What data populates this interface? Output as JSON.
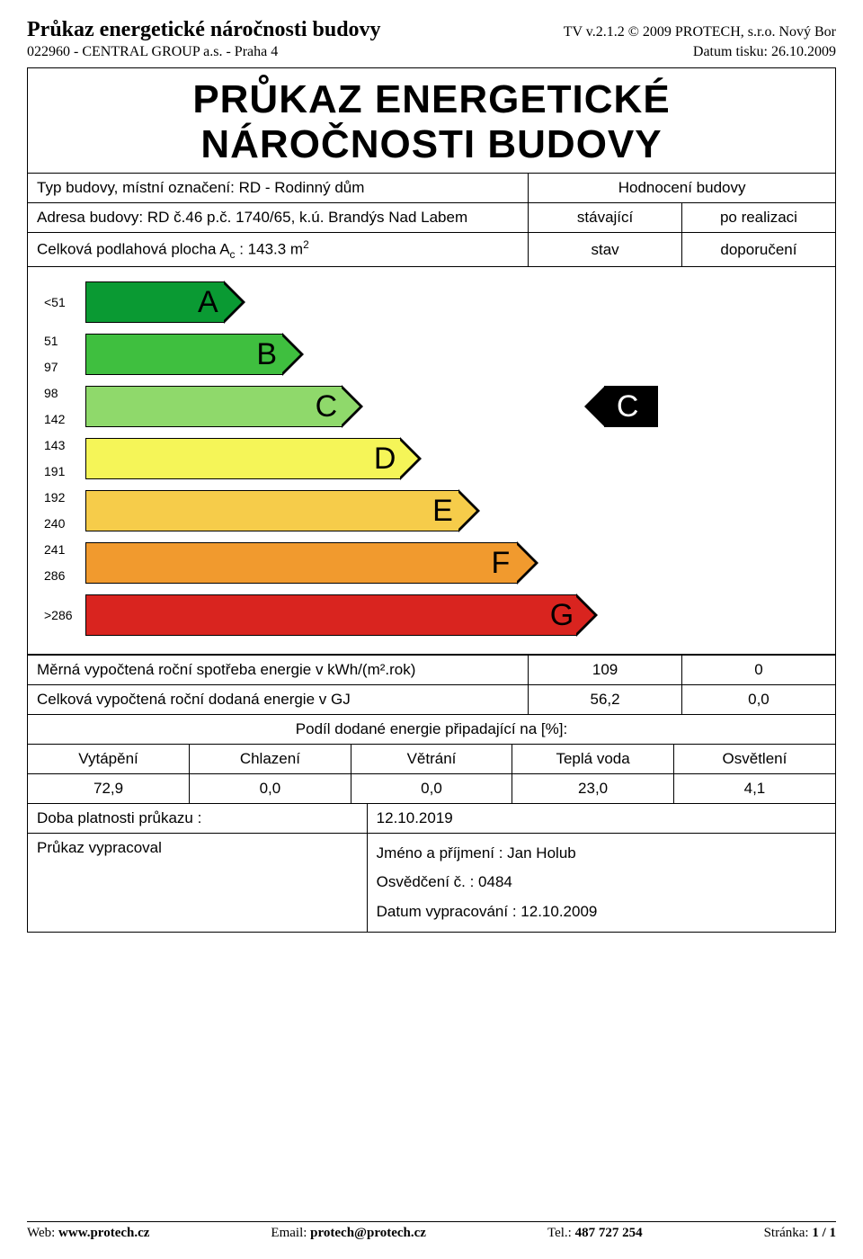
{
  "header": {
    "title": "Průkaz energetické náročnosti budovy",
    "software": "TV v.2.1.2 © 2009 PROTECH, s.r.o. Nový Bor",
    "project": "022960 - CENTRAL GROUP a.s. - Praha 4",
    "print_date_label": "Datum tisku: ",
    "print_date": "26.10.2009"
  },
  "main_title_line1": "PRŮKAZ ENERGETICKÉ",
  "main_title_line2": "NÁROČNOSTI BUDOVY",
  "info": {
    "type_label": "Typ budovy, místní označení: ",
    "type_value": "RD - Rodinný dům",
    "rating_header": "Hodnocení budovy",
    "address_label": "Adresa budovy: ",
    "address_value": "RD č.46 p.č. 1740/65, k.ú. Brandýs Nad Labem",
    "col2_row2": "stávající",
    "col3_row2": "po realizaci",
    "area_label_pre": "Celková podlahová plocha A",
    "area_label_sub": "c",
    "area_label_post": " : 143.3 m",
    "col2_row3": "stav",
    "col3_row3": "doporučení"
  },
  "chart": {
    "bars": [
      {
        "letter": "A",
        "range_lo": "<51",
        "range_hi": "",
        "width_pct": 22,
        "color": "#0a9a33"
      },
      {
        "letter": "B",
        "range_lo": "51",
        "range_hi": "97",
        "width_pct": 30,
        "color": "#3fbf3f"
      },
      {
        "letter": "C",
        "range_lo": "98",
        "range_hi": "142",
        "width_pct": 38,
        "color": "#8fd96b"
      },
      {
        "letter": "D",
        "range_lo": "143",
        "range_hi": "191",
        "width_pct": 46,
        "color": "#f5f558"
      },
      {
        "letter": "E",
        "range_lo": "192",
        "range_hi": "240",
        "width_pct": 54,
        "color": "#f6cc4a"
      },
      {
        "letter": "F",
        "range_lo": "241",
        "range_hi": "286",
        "width_pct": 62,
        "color": "#f19a2e"
      },
      {
        "letter": "G",
        "range_lo": ">286",
        "range_hi": "",
        "width_pct": 70,
        "color": "#d9241f"
      }
    ],
    "rating_current": {
      "letter": "C",
      "row_index": 2,
      "left_pct": 68
    }
  },
  "metrics": {
    "row1_label": "Měrná vypočtená roční spotřeba energie v kWh/(m².rok)",
    "row1_v1": "109",
    "row1_v2": "0",
    "row2_label": "Celková vypočtená roční dodaná energie v GJ",
    "row2_v1": "56,2",
    "row2_v2": "0,0"
  },
  "share": {
    "header": "Podíl dodané energie připadající na [%]:",
    "cols": [
      "Vytápění",
      "Chlazení",
      "Větrání",
      "Teplá voda",
      "Osvětlení"
    ],
    "vals": [
      "72,9",
      "0,0",
      "0,0",
      "23,0",
      "4,1"
    ]
  },
  "bottom": {
    "validity_label": "Doba platnosti průkazu :",
    "validity_value": "12.10.2019",
    "author_label": "Průkaz vypracoval",
    "name_label": "Jméno a příjmení : ",
    "name_value": "Jan Holub",
    "cert_label": "Osvědčení č. : ",
    "cert_value": "0484",
    "date_label": "Datum vypracování : ",
    "date_value": "12.10.2009"
  },
  "footer": {
    "web_label": "Web: ",
    "web": "www.protech.cz",
    "email_label": "Email: ",
    "email": "protech@protech.cz",
    "tel_label": "Tel.: ",
    "tel": "487 727 254",
    "page_label": "Stránka: ",
    "page": "1 / 1"
  }
}
